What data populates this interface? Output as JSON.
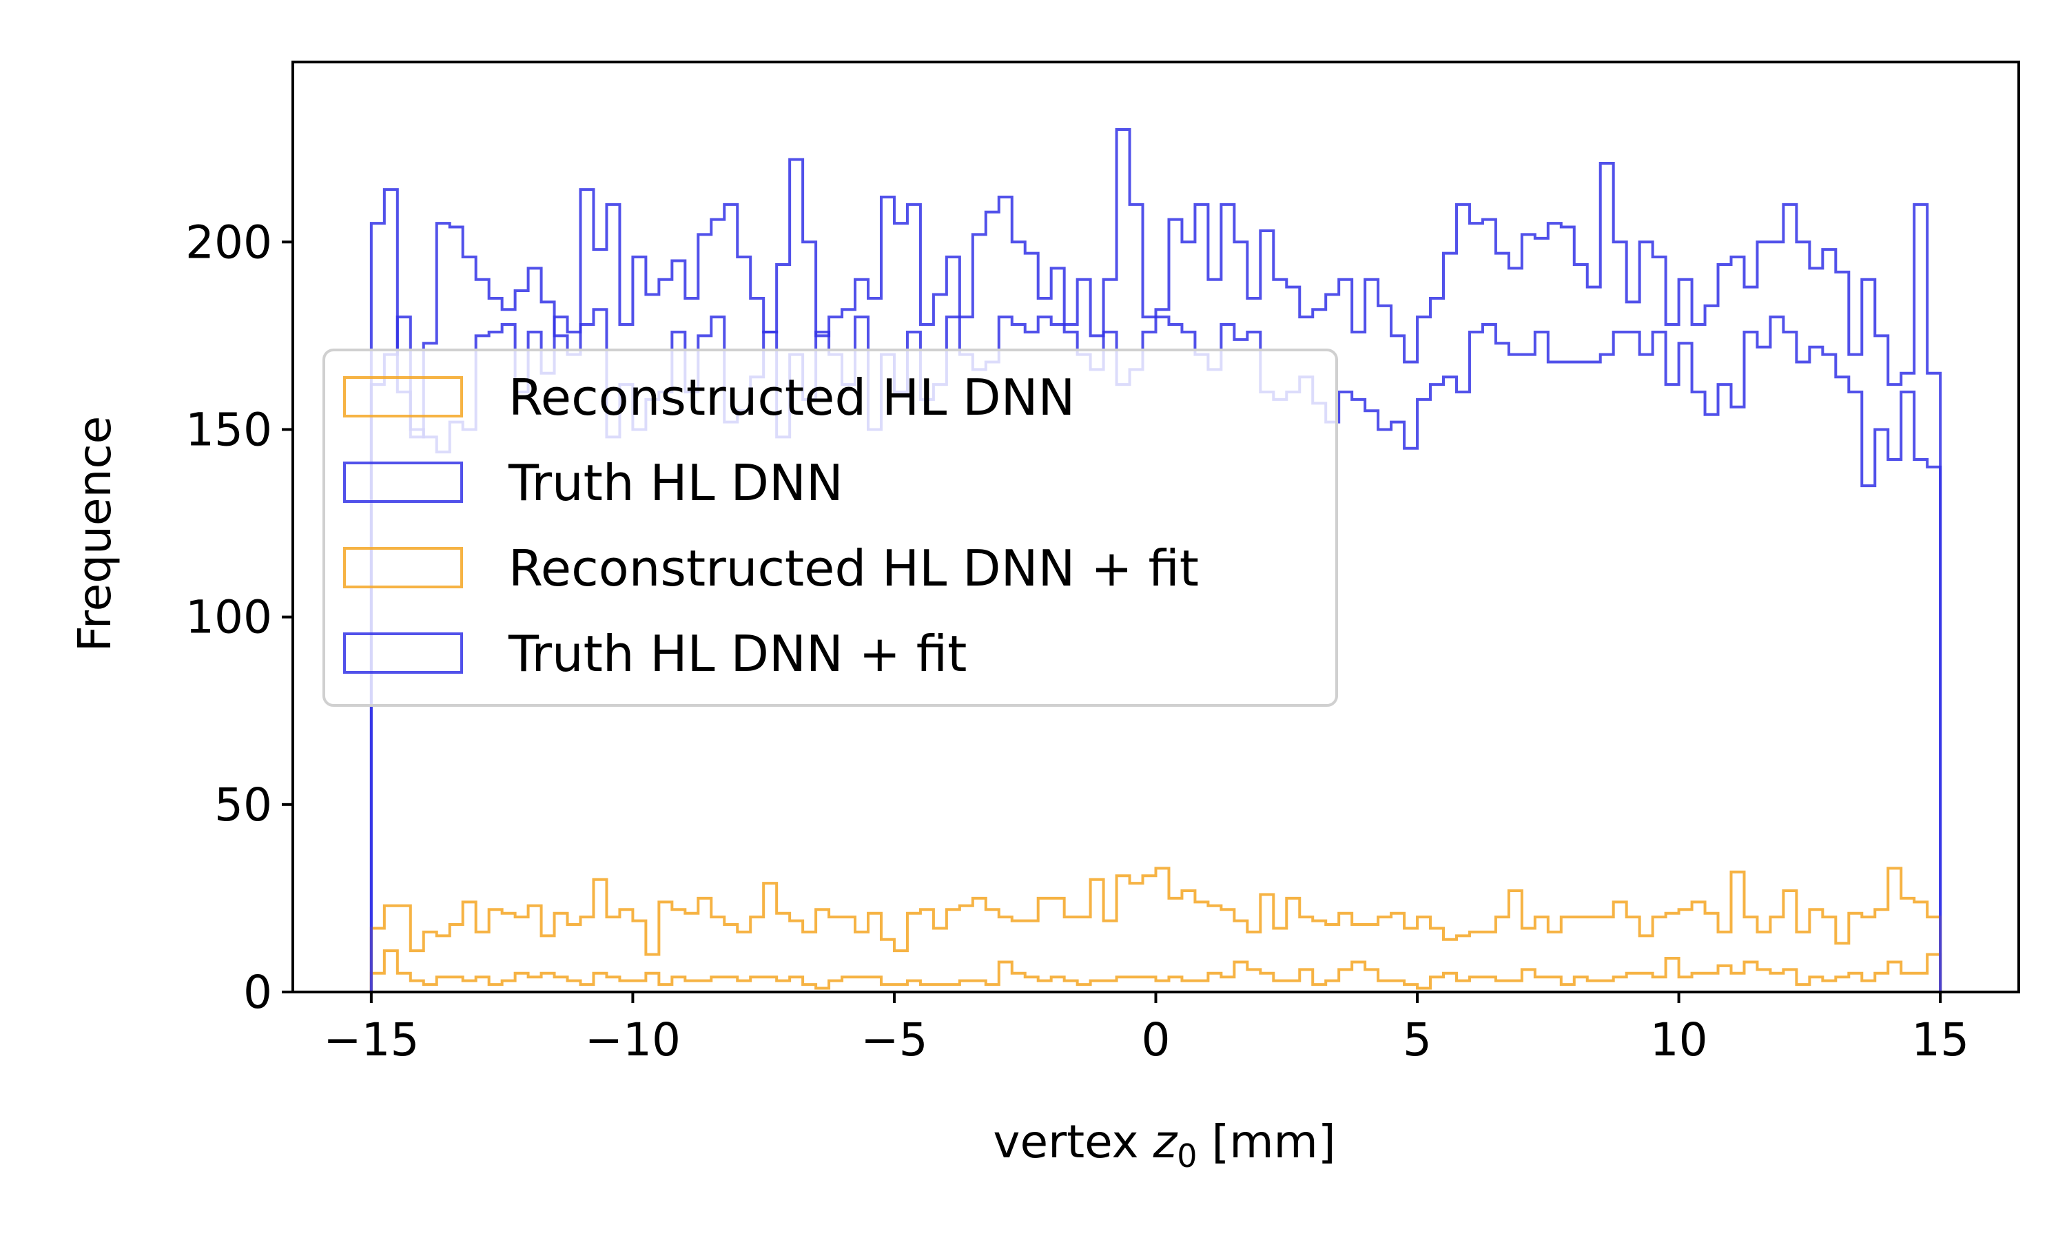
{
  "chart_data": {
    "type": "histogram-step",
    "xlabel": "vertex",
    "xlabel_symbol": "z",
    "xlabel_subscript": "0",
    "xlabel_unit": "[mm]",
    "ylabel": "Frequence",
    "xlim": [
      -16.5,
      16.5
    ],
    "ylim": [
      0,
      248
    ],
    "xticks": [
      -15,
      -10,
      -5,
      0,
      5,
      10,
      15
    ],
    "xtick_labels": [
      "−15",
      "−10",
      "−5",
      "0",
      "5",
      "10",
      "15"
    ],
    "yticks": [
      0,
      50,
      100,
      150,
      200
    ],
    "ytick_labels": [
      "0",
      "50",
      "100",
      "150",
      "200"
    ],
    "grid": false,
    "legend_position": "center-left",
    "bin_range": [
      -15,
      15
    ],
    "n_bins": 120,
    "series": [
      {
        "name": "Reconstructed HL DNN",
        "color": "#f5a623",
        "values": [
          5,
          11,
          5,
          3,
          2,
          4,
          4,
          3,
          4,
          2,
          3,
          5,
          4,
          5,
          4,
          3,
          2,
          5,
          4,
          3,
          3,
          5,
          2,
          4,
          3,
          3,
          4,
          4,
          3,
          4,
          4,
          3,
          4,
          2,
          1,
          3,
          4,
          4,
          4,
          2,
          2,
          3,
          2,
          2,
          2,
          3,
          3,
          2,
          8,
          5,
          4,
          3,
          4,
          3,
          2,
          3,
          3,
          4,
          4,
          4,
          3,
          4,
          3,
          3,
          5,
          4,
          8,
          6,
          5,
          3,
          3,
          6,
          2,
          3,
          6,
          8,
          6,
          3,
          3,
          2,
          1,
          4,
          5,
          3,
          4,
          4,
          3,
          3,
          6,
          4,
          4,
          2,
          4,
          3,
          3,
          4,
          5,
          5,
          4,
          9,
          4,
          5,
          5,
          7,
          5,
          8,
          6,
          5,
          6,
          2,
          4,
          3,
          4,
          5,
          3,
          5,
          8,
          5,
          5,
          10
        ]
      },
      {
        "name": "Truth HL DNN",
        "color": "#3333e6",
        "values": [
          162,
          170,
          180,
          150,
          148,
          144,
          152,
          150,
          175,
          176,
          178,
          160,
          176,
          165,
          180,
          176,
          178,
          182,
          148,
          162,
          150,
          158,
          160,
          176,
          160,
          175,
          180,
          152,
          155,
          164,
          176,
          148,
          170,
          158,
          176,
          170,
          162,
          180,
          150,
          170,
          160,
          176,
          158,
          162,
          180,
          170,
          166,
          168,
          180,
          178,
          176,
          180,
          178,
          176,
          170,
          166,
          176,
          162,
          166,
          176,
          180,
          178,
          176,
          170,
          166,
          178,
          174,
          176,
          160,
          158,
          160,
          164,
          157,
          152,
          160,
          158,
          155,
          150,
          152,
          145,
          158,
          162,
          164,
          160,
          176,
          178,
          173,
          170,
          170,
          176,
          168,
          168,
          168,
          168,
          170,
          176,
          176,
          170,
          176,
          162,
          173,
          160,
          154,
          162,
          156,
          176,
          172,
          180,
          176,
          168,
          172,
          170,
          164,
          160,
          135,
          150,
          142,
          160,
          142,
          140
        ]
      },
      {
        "name": "Reconstructed HL DNN + fit",
        "color": "#f5a623",
        "values": [
          17,
          23,
          23,
          11,
          16,
          15,
          18,
          24,
          16,
          22,
          21,
          20,
          23,
          15,
          21,
          18,
          20,
          30,
          20,
          22,
          19,
          10,
          24,
          22,
          21,
          25,
          20,
          18,
          16,
          20,
          29,
          21,
          19,
          16,
          22,
          20,
          20,
          16,
          21,
          14,
          11,
          21,
          22,
          17,
          22,
          23,
          25,
          22,
          20,
          19,
          19,
          25,
          25,
          20,
          20,
          30,
          19,
          31,
          29,
          31,
          33,
          25,
          27,
          24,
          23,
          22,
          19,
          16,
          26,
          17,
          25,
          20,
          19,
          18,
          21,
          18,
          18,
          20,
          21,
          17,
          20,
          17,
          14,
          15,
          16,
          16,
          20,
          27,
          17,
          20,
          16,
          20,
          20,
          20,
          20,
          24,
          20,
          15,
          20,
          21,
          22,
          24,
          21,
          16,
          32,
          20,
          16,
          20,
          27,
          16,
          22,
          20,
          13,
          21,
          20,
          22,
          33,
          25,
          24,
          20
        ]
      },
      {
        "name": "Truth HL DNN + fit",
        "color": "#3333e6",
        "values": [
          205,
          214,
          160,
          148,
          173,
          205,
          204,
          196,
          190,
          185,
          182,
          187,
          193,
          184,
          175,
          170,
          214,
          198,
          210,
          178,
          196,
          186,
          190,
          195,
          185,
          202,
          206,
          210,
          196,
          185,
          176,
          194,
          222,
          200,
          175,
          180,
          182,
          190,
          185,
          212,
          205,
          210,
          178,
          186,
          196,
          180,
          202,
          208,
          212,
          200,
          197,
          185,
          193,
          178,
          190,
          175,
          190,
          230,
          210,
          180,
          182,
          206,
          200,
          210,
          190,
          210,
          200,
          185,
          203,
          190,
          188,
          180,
          182,
          186,
          190,
          176,
          190,
          183,
          175,
          168,
          180,
          185,
          197,
          210,
          205,
          206,
          197,
          193,
          202,
          201,
          205,
          204,
          194,
          188,
          221,
          200,
          184,
          200,
          196,
          178,
          190,
          178,
          183,
          194,
          196,
          188,
          200,
          200,
          210,
          200,
          193,
          198,
          192,
          170,
          190,
          175,
          162,
          165,
          210,
          165
        ]
      }
    ]
  }
}
